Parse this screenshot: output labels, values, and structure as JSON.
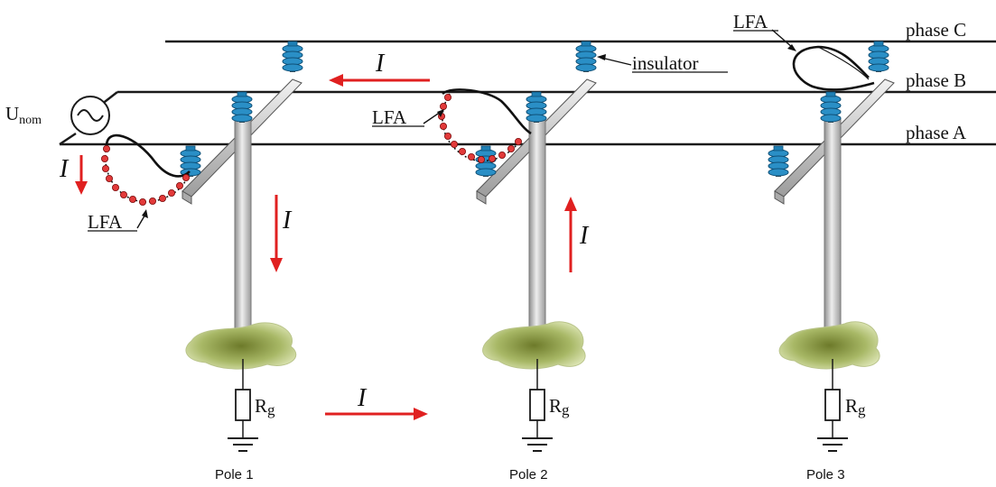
{
  "labels": {
    "phase_c": "phase C",
    "phase_b": "phase B",
    "phase_a": "phase A",
    "insulator": "insulator",
    "lfa": "LFA",
    "source_main": "U",
    "source_sub": "nom",
    "resistor": "R",
    "resistor_sub": "g",
    "current": "I",
    "poles": [
      "Pole 1",
      "Pole 2",
      "Pole 3"
    ]
  },
  "colors": {
    "line": "#1a1a1a",
    "current_arrow": "#e02020",
    "insulator": "#1e7fb4",
    "insulator_dark": "#0f5077",
    "pole": "#c8c8c8",
    "ground_patch": "#a2b15c",
    "lfa_bead": "#e23a3a"
  },
  "icons": [
    "ac-source-icon",
    "insulator-icon",
    "resistor-icon",
    "ground-icon",
    "arrow-icon"
  ]
}
